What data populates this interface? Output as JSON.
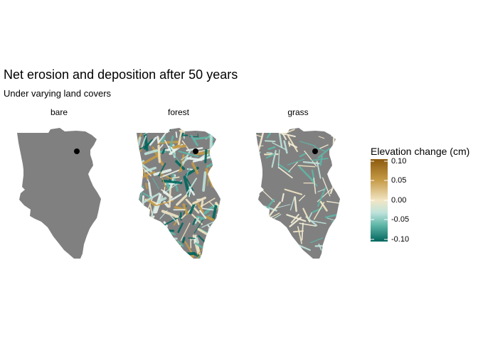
{
  "map": {
    "title": "Net erosion and deposition after 50 years",
    "subtitle": "Under varying land covers",
    "panels": [
      {
        "label": "bare",
        "pattern": "none"
      },
      {
        "label": "forest",
        "pattern": "dense"
      },
      {
        "label": "grass",
        "pattern": "sparse"
      }
    ],
    "base_color": "#808080",
    "outlet_marker_color": "#000000",
    "legend": {
      "title": "Elevation change (cm)",
      "ticks": [
        "0.10",
        "0.05",
        "0.00",
        "-0.05",
        "-0.10"
      ],
      "range": [
        -0.1,
        0.1
      ],
      "colors": [
        "#8c5a0e",
        "#c59a45",
        "#f2e6c4",
        "#bfe3db",
        "#5fb6a8",
        "#01665e"
      ]
    }
  }
}
